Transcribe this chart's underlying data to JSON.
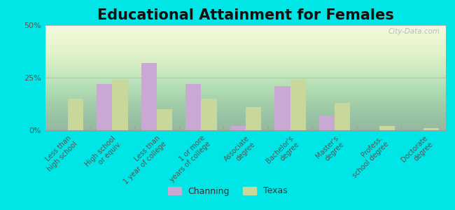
{
  "title": "Educational Attainment for Females",
  "categories": [
    "Less than\nhigh school",
    "High school\nor equiv.",
    "Less than\n1 year of college",
    "1 or more\nyears of college",
    "Associate\ndegree",
    "Bachelor's\ndegree",
    "Master's\ndegree",
    "Profess.\nschool degree",
    "Doctorate\ndegree"
  ],
  "channing_values": [
    0,
    22,
    32,
    22,
    2,
    21,
    7,
    0,
    0
  ],
  "texas_values": [
    15,
    24,
    10,
    15,
    11,
    24,
    13,
    2,
    1
  ],
  "channing_color": "#c9a8d4",
  "texas_color": "#c8d89a",
  "background_color": "#00e5e5",
  "ylim": [
    0,
    50
  ],
  "yticks": [
    0,
    25,
    50
  ],
  "ytick_labels": [
    "0%",
    "25%",
    "50%"
  ],
  "legend_channing": "Channing",
  "legend_texas": "Texas",
  "title_fontsize": 15,
  "bar_width": 0.35,
  "watermark": "City-Data.com"
}
